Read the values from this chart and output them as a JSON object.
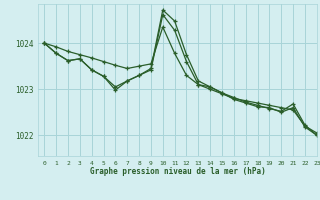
{
  "background_color": "#d4eef0",
  "grid_color": "#a8d4d8",
  "line_color": "#2a5e2a",
  "title": "Graphe pression niveau de la mer (hPa)",
  "xlim": [
    -0.5,
    23
  ],
  "ylim": [
    1021.55,
    1024.85
  ],
  "yticks": [
    1022,
    1023,
    1024
  ],
  "xticks": [
    0,
    1,
    2,
    3,
    4,
    5,
    6,
    7,
    8,
    9,
    10,
    11,
    12,
    13,
    14,
    15,
    16,
    17,
    18,
    19,
    20,
    21,
    22,
    23
  ],
  "line1": [
    1024.0,
    1023.92,
    1023.82,
    1023.75,
    1023.68,
    1023.6,
    1023.52,
    1023.45,
    1023.5,
    1023.55,
    1024.35,
    1023.78,
    1023.3,
    1023.1,
    1023.0,
    1022.9,
    1022.8,
    1022.75,
    1022.7,
    1022.65,
    1022.6,
    1022.55,
    1022.2,
    1022.05
  ],
  "line2": [
    1024.0,
    1023.78,
    1023.62,
    1023.66,
    1023.42,
    1023.28,
    1023.05,
    1023.18,
    1023.3,
    1023.42,
    1024.62,
    1024.28,
    1023.6,
    1023.1,
    1023.05,
    1022.92,
    1022.82,
    1022.72,
    1022.65,
    1022.58,
    1022.52,
    1022.68,
    1022.22,
    1022.0
  ],
  "line3": [
    1024.0,
    1023.78,
    1023.62,
    1023.66,
    1023.42,
    1023.28,
    1022.98,
    1023.18,
    1023.3,
    1023.45,
    1024.72,
    1024.48,
    1023.75,
    1023.18,
    1023.05,
    1022.92,
    1022.78,
    1022.7,
    1022.62,
    1022.6,
    1022.5,
    1022.6,
    1022.18,
    1022.0
  ]
}
